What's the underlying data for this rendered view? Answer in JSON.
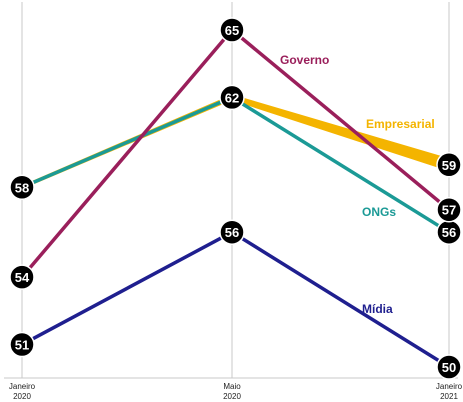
{
  "chart_data": {
    "type": "line",
    "categories": [
      "Janeiro\n2020",
      "Maio\n2020",
      "Janeiro\n2021"
    ],
    "series": [
      {
        "name": "Governo",
        "values": [
          54,
          65,
          57
        ],
        "color": "#9a1f5b"
      },
      {
        "name": "Empresarial",
        "values": [
          58,
          62,
          59
        ],
        "color": "#f4b400"
      },
      {
        "name": "ONGs",
        "values": [
          58,
          62,
          56
        ],
        "color": "#1b9a96"
      },
      {
        "name": "Mídia",
        "values": [
          51,
          56,
          50
        ],
        "color": "#1f1f8f"
      }
    ],
    "grid": {
      "vertical": true,
      "horizontal": false
    },
    "legend": "inline labels"
  }
}
